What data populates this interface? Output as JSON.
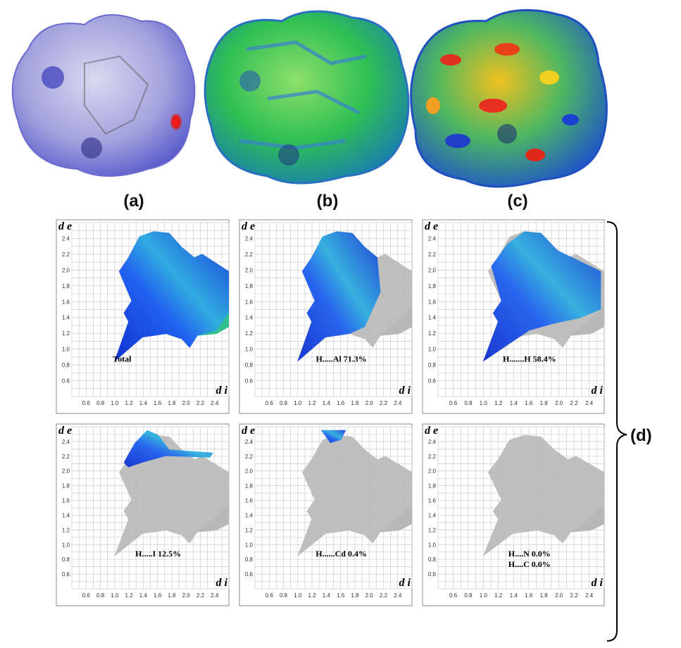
{
  "surface_labels": [
    "(a)",
    "(b)",
    "(c)"
  ],
  "group_label": "(d)",
  "fingerprint": {
    "x_axis_label": "d i",
    "y_axis_label": "d e",
    "ticks": [
      "0.6",
      "0.8",
      "1.0",
      "1.2",
      "1.4",
      "1.6",
      "1.8",
      "2.0",
      "2.2",
      "2.4"
    ]
  },
  "plots": [
    {
      "labels": [
        "Total"
      ]
    },
    {
      "labels": [
        "H.....Al  71.3%"
      ]
    },
    {
      "labels": [
        "H.......H  58.4%"
      ]
    },
    {
      "labels": [
        "H.....I  12.5%"
      ]
    },
    {
      "labels": [
        "H......Cd   0.4%"
      ]
    },
    {
      "labels": [
        "H....N  0.0%",
        "H....C  0.0%"
      ]
    }
  ]
}
